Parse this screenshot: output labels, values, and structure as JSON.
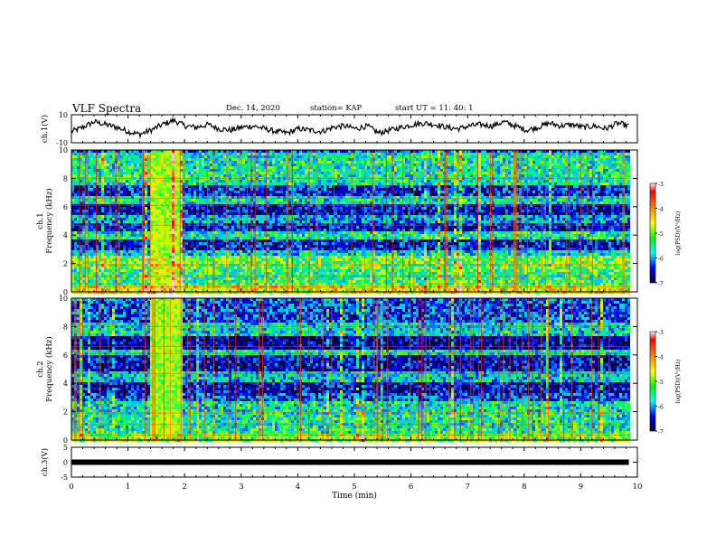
{
  "header": {
    "title": "VLF Spectra",
    "date": "Dec. 14, 2020",
    "station": "station= KAP",
    "start": "start  UT =   11: 40: 1"
  },
  "chart_data": [
    {
      "type": "line",
      "panel": "ch1-waveform",
      "ylabel": "ch.1(V)",
      "ylim": [
        -10,
        10
      ],
      "yticks": [
        "10",
        "-10"
      ],
      "xlim": [
        0,
        10
      ],
      "x_end": 9.85,
      "series": [
        {
          "values_approx": [
            -2,
            1,
            5,
            3,
            1,
            -2,
            -4,
            -1,
            3,
            6,
            2,
            1,
            3,
            0,
            -1,
            1,
            2,
            0,
            -2,
            -3,
            0,
            -1,
            -2,
            1,
            2,
            0,
            2,
            -3,
            -1,
            1,
            3,
            4,
            3,
            1,
            0,
            2,
            3,
            2,
            5,
            2,
            -1,
            1,
            4,
            2,
            3,
            1,
            2,
            0,
            4,
            2
          ]
        }
      ]
    },
    {
      "type": "heatmap",
      "panel": "ch1-spectrogram",
      "ylabel": "ch.1\nFrequency (kHz)",
      "ylim": [
        0,
        10
      ],
      "yticks": [
        "0",
        "2",
        "4",
        "6",
        "8",
        "10"
      ],
      "xlim": [
        0,
        10
      ],
      "x_end": 9.85,
      "colorbar": {
        "label": "log(PSD)(V²/Hz)",
        "range": [
          -7,
          -3
        ],
        "ticks": [
          "-3",
          "-4",
          "-5",
          "-6",
          "-7"
        ]
      },
      "burst_interval_min": [
        1.35,
        1.95
      ],
      "bands_kHz": [
        {
          "from": 0.0,
          "to": 0.5,
          "level": -4.2
        },
        {
          "from": 0.5,
          "to": 1.6,
          "level": -5.1
        },
        {
          "from": 1.6,
          "to": 2.6,
          "level": -4.8
        },
        {
          "from": 2.6,
          "to": 3.0,
          "level": -5.5
        },
        {
          "from": 3.0,
          "to": 3.8,
          "level": -6.5
        },
        {
          "from": 3.8,
          "to": 4.4,
          "level": -5.3
        },
        {
          "from": 4.4,
          "to": 4.9,
          "level": -6.5
        },
        {
          "from": 4.9,
          "to": 5.6,
          "level": -5.8
        },
        {
          "from": 5.6,
          "to": 6.2,
          "level": -6.6
        },
        {
          "from": 6.2,
          "to": 6.8,
          "level": -5.4
        },
        {
          "from": 6.8,
          "to": 7.6,
          "level": -6.4
        },
        {
          "from": 7.6,
          "to": 10.0,
          "level": -5.3
        }
      ]
    },
    {
      "type": "heatmap",
      "panel": "ch2-spectrogram",
      "ylabel": "ch.2\nFrequency (kHz)",
      "ylim": [
        0,
        10
      ],
      "yticks": [
        "0",
        "2",
        "4",
        "6",
        "8",
        "10"
      ],
      "xlim": [
        0,
        10
      ],
      "x_end": 9.85,
      "colorbar": {
        "label": "log(PSD)(V²/Hz)",
        "range": [
          -7,
          -3
        ],
        "ticks": [
          "-3",
          "-4",
          "-5",
          "-6",
          "-7"
        ]
      },
      "burst_interval_min": [
        1.35,
        1.95
      ],
      "bands_kHz": [
        {
          "from": 0.0,
          "to": 0.5,
          "level": -4.6
        },
        {
          "from": 0.5,
          "to": 2.0,
          "level": -5.3
        },
        {
          "from": 2.0,
          "to": 2.8,
          "level": -5.4
        },
        {
          "from": 2.8,
          "to": 3.4,
          "level": -6.2
        },
        {
          "from": 3.4,
          "to": 4.2,
          "level": -6.6
        },
        {
          "from": 4.2,
          "to": 5.0,
          "level": -5.6
        },
        {
          "from": 5.0,
          "to": 6.0,
          "level": -6.6
        },
        {
          "from": 6.0,
          "to": 6.4,
          "level": -5.4
        },
        {
          "from": 6.4,
          "to": 7.4,
          "level": -6.8
        },
        {
          "from": 7.4,
          "to": 8.4,
          "level": -5.5
        },
        {
          "from": 8.4,
          "to": 10.0,
          "level": -6.2
        }
      ]
    },
    {
      "type": "line",
      "panel": "ch3-waveform",
      "ylabel": "ch.3(V)",
      "ylim": [
        -5,
        5
      ],
      "yticks": [
        "5",
        "0",
        "-5"
      ],
      "xlim": [
        0,
        10
      ],
      "x_end": 9.85,
      "xlabel": "Time (min)",
      "xticks": [
        "0",
        "1",
        "2",
        "3",
        "4",
        "5",
        "6",
        "7",
        "8",
        "9",
        "10"
      ],
      "series": [
        {
          "constant": 0
        }
      ]
    }
  ]
}
